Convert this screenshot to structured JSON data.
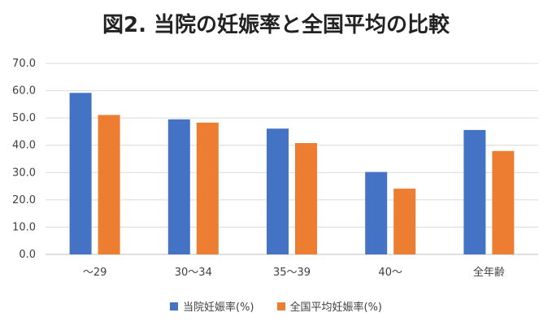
{
  "chart_data": {
    "type": "bar",
    "title": "図2. 当院の妊娠率と全国平均の比較",
    "categories": [
      "～29",
      "30～34",
      "35～39",
      "40～",
      "全年齢"
    ],
    "series": [
      {
        "name": "当院妊娠率(%)",
        "color": "#4472C4",
        "values": [
          59.2,
          49.5,
          46.1,
          30.2,
          45.6
        ]
      },
      {
        "name": "全国平均妊娠率(%)",
        "color": "#ED7D31",
        "values": [
          51.1,
          48.3,
          40.8,
          24.1,
          37.9
        ]
      }
    ],
    "yticks": [
      "0.0",
      "10.0",
      "20.0",
      "30.0",
      "40.0",
      "50.0",
      "60.0",
      "70.0"
    ],
    "ylim": [
      0,
      70
    ],
    "grid": true,
    "legend": "bottom"
  }
}
